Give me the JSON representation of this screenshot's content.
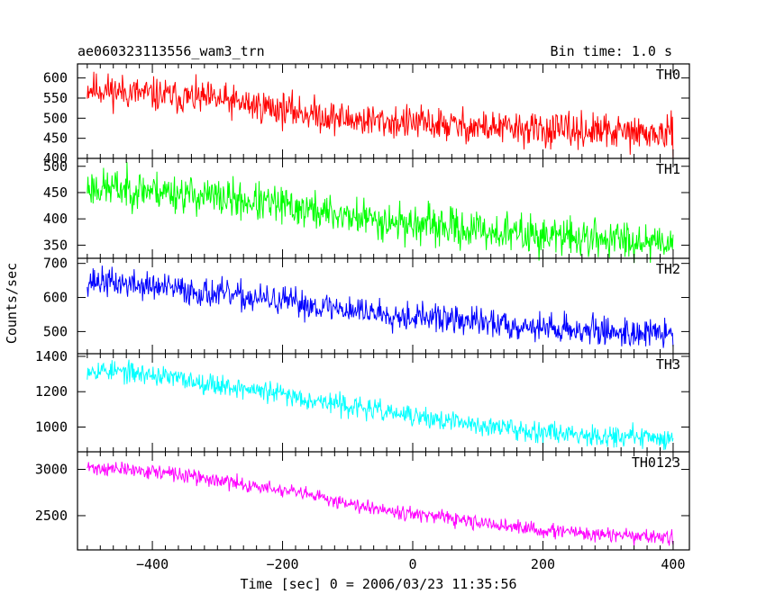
{
  "header": {
    "title": "ae060323113556_wam3_trn",
    "bin_time": "Bin time: 1.0 s"
  },
  "chart_data": {
    "type": "line",
    "title": "ae060323113556_wam3_trn",
    "xlabel": "Time [sec] 0 = 2006/03/23 11:35:56",
    "ylabel": "Counts/sec",
    "xlim": [
      -515,
      425
    ],
    "x_ticks": [
      -400,
      -200,
      0,
      200,
      400
    ],
    "x_tick_labels": [
      "−400",
      "−200",
      "0",
      "200",
      "400"
    ],
    "data_range": [
      -500,
      400
    ],
    "panels": [
      {
        "name": "TH0",
        "color": "#ff0000",
        "ylim": [
          400,
          635
        ],
        "yticks": [
          400,
          450,
          500,
          550,
          600
        ],
        "ytick_labels": [
          "400",
          "450",
          "500",
          "550",
          "600"
        ],
        "trend": [
          [
            -500,
            575
          ],
          [
            -400,
            558
          ],
          [
            -300,
            545
          ],
          [
            -200,
            522
          ],
          [
            -100,
            497
          ],
          [
            0,
            488
          ],
          [
            100,
            478
          ],
          [
            200,
            470
          ],
          [
            300,
            466
          ],
          [
            400,
            458
          ]
        ],
        "noise": 30,
        "seed": 11
      },
      {
        "name": "TH1",
        "color": "#00ff00",
        "ylim": [
          325,
          515
        ],
        "yticks": [
          350,
          400,
          450,
          500
        ],
        "ytick_labels": [
          "350",
          "400",
          "450",
          "500"
        ],
        "trend": [
          [
            -500,
            460
          ],
          [
            -400,
            455
          ],
          [
            -300,
            440
          ],
          [
            -200,
            425
          ],
          [
            -100,
            405
          ],
          [
            0,
            390
          ],
          [
            100,
            378
          ],
          [
            200,
            368
          ],
          [
            300,
            362
          ],
          [
            400,
            358
          ]
        ],
        "noise": 26,
        "seed": 23
      },
      {
        "name": "TH2",
        "color": "#0000ff",
        "ylim": [
          435,
          715
        ],
        "yticks": [
          500,
          600,
          700
        ],
        "ytick_labels": [
          "500",
          "600",
          "700"
        ],
        "trend": [
          [
            -500,
            650
          ],
          [
            -400,
            632
          ],
          [
            -300,
            610
          ],
          [
            -200,
            588
          ],
          [
            -100,
            565
          ],
          [
            0,
            545
          ],
          [
            100,
            528
          ],
          [
            200,
            512
          ],
          [
            300,
            500
          ],
          [
            400,
            492
          ]
        ],
        "noise": 30,
        "seed": 37
      },
      {
        "name": "TH3",
        "color": "#00ffff",
        "ylim": [
          860,
          1415
        ],
        "yticks": [
          1000,
          1200,
          1400
        ],
        "ytick_labels": [
          "1000",
          "1200",
          "1400"
        ],
        "trend": [
          [
            -500,
            1330
          ],
          [
            -400,
            1295
          ],
          [
            -300,
            1240
          ],
          [
            -200,
            1185
          ],
          [
            -100,
            1120
          ],
          [
            0,
            1060
          ],
          [
            100,
            1010
          ],
          [
            200,
            975
          ],
          [
            300,
            950
          ],
          [
            400,
            935
          ]
        ],
        "noise": 42,
        "seed": 53
      },
      {
        "name": "TH0123",
        "color": "#ff00ff",
        "ylim": [
          2130,
          3190
        ],
        "yticks": [
          2500,
          3000
        ],
        "ytick_labels": [
          "2500",
          "3000"
        ],
        "trend": [
          [
            -500,
            3020
          ],
          [
            -400,
            2980
          ],
          [
            -300,
            2880
          ],
          [
            -200,
            2770
          ],
          [
            -100,
            2640
          ],
          [
            0,
            2520
          ],
          [
            100,
            2420
          ],
          [
            200,
            2340
          ],
          [
            300,
            2290
          ],
          [
            400,
            2260
          ]
        ],
        "noise": 55,
        "seed": 71
      }
    ]
  }
}
